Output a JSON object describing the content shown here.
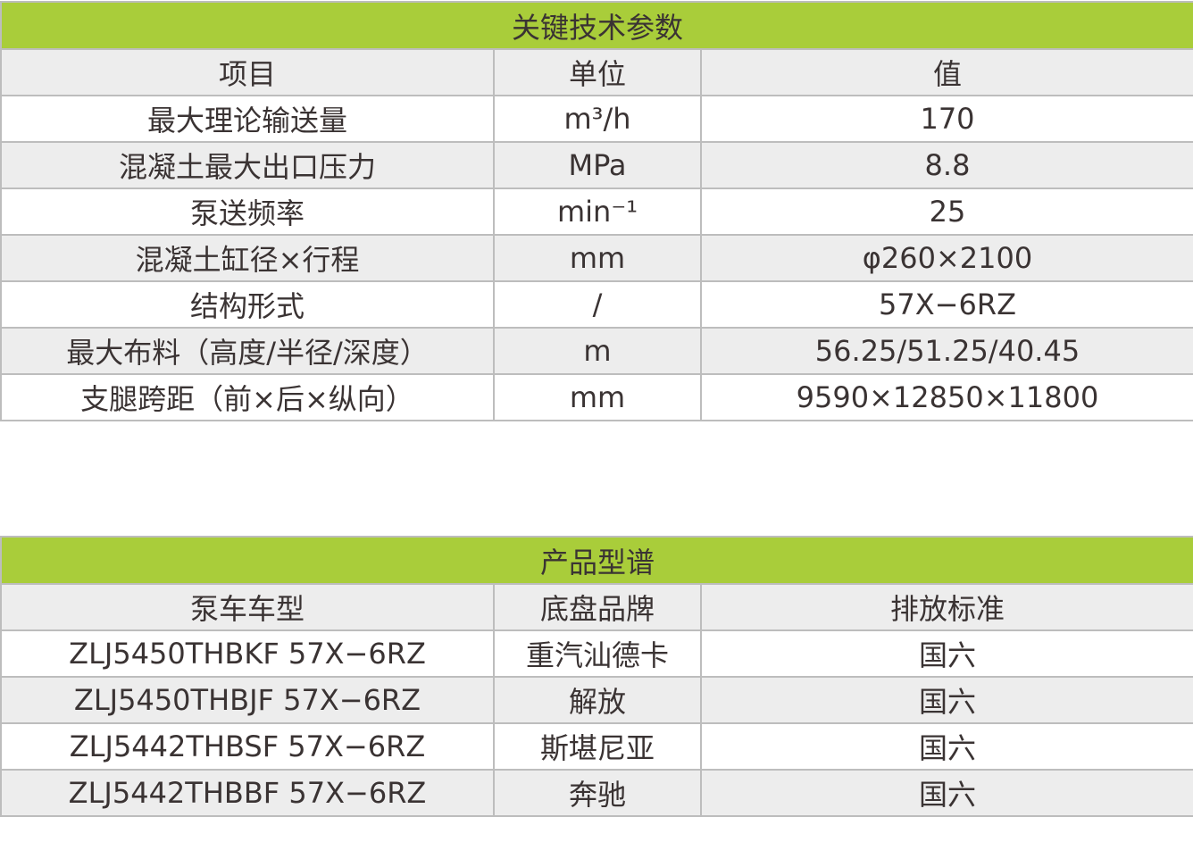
{
  "spec_table": {
    "title": "关键技术参数",
    "headers": [
      "项目",
      "单位",
      "值"
    ],
    "rows": [
      {
        "item": "最大理论输送量",
        "unit": "m³/h",
        "value": "170"
      },
      {
        "item": "混凝土最大出口压力",
        "unit": "MPa",
        "value": "8.8"
      },
      {
        "item": "泵送频率",
        "unit": "min⁻¹",
        "value": "25"
      },
      {
        "item": "混凝土缸径×行程",
        "unit": "mm",
        "value": "φ260×2100"
      },
      {
        "item": "结构形式",
        "unit": "/",
        "value": "57X−6RZ"
      },
      {
        "item": "最大布料（高度/半径/深度）",
        "unit": "m",
        "value": "56.25/51.25/40.45"
      },
      {
        "item": "支腿跨距（前×后×纵向）",
        "unit": "mm",
        "value": "9590×12850×11800"
      }
    ]
  },
  "model_table": {
    "title": "产品型谱",
    "headers": [
      "泵车车型",
      "底盘品牌",
      "排放标准"
    ],
    "rows": [
      {
        "model": "ZLJ5450THBKF 57X−6RZ",
        "chassis": "重汽汕德卡",
        "emission": "国六"
      },
      {
        "model": "ZLJ5450THBJF 57X−6RZ",
        "chassis": "解放",
        "emission": "国六"
      },
      {
        "model": "ZLJ5442THBSF 57X−6RZ",
        "chassis": "斯堪尼亚",
        "emission": "国六"
      },
      {
        "model": "ZLJ5442THBBF 57X−6RZ",
        "chassis": "奔驰",
        "emission": "国六"
      }
    ]
  },
  "colors": {
    "title_bar": "#a9cd3a",
    "header_bg": "#ededed",
    "border": "#bdbdbd",
    "text": "#3a3333"
  }
}
